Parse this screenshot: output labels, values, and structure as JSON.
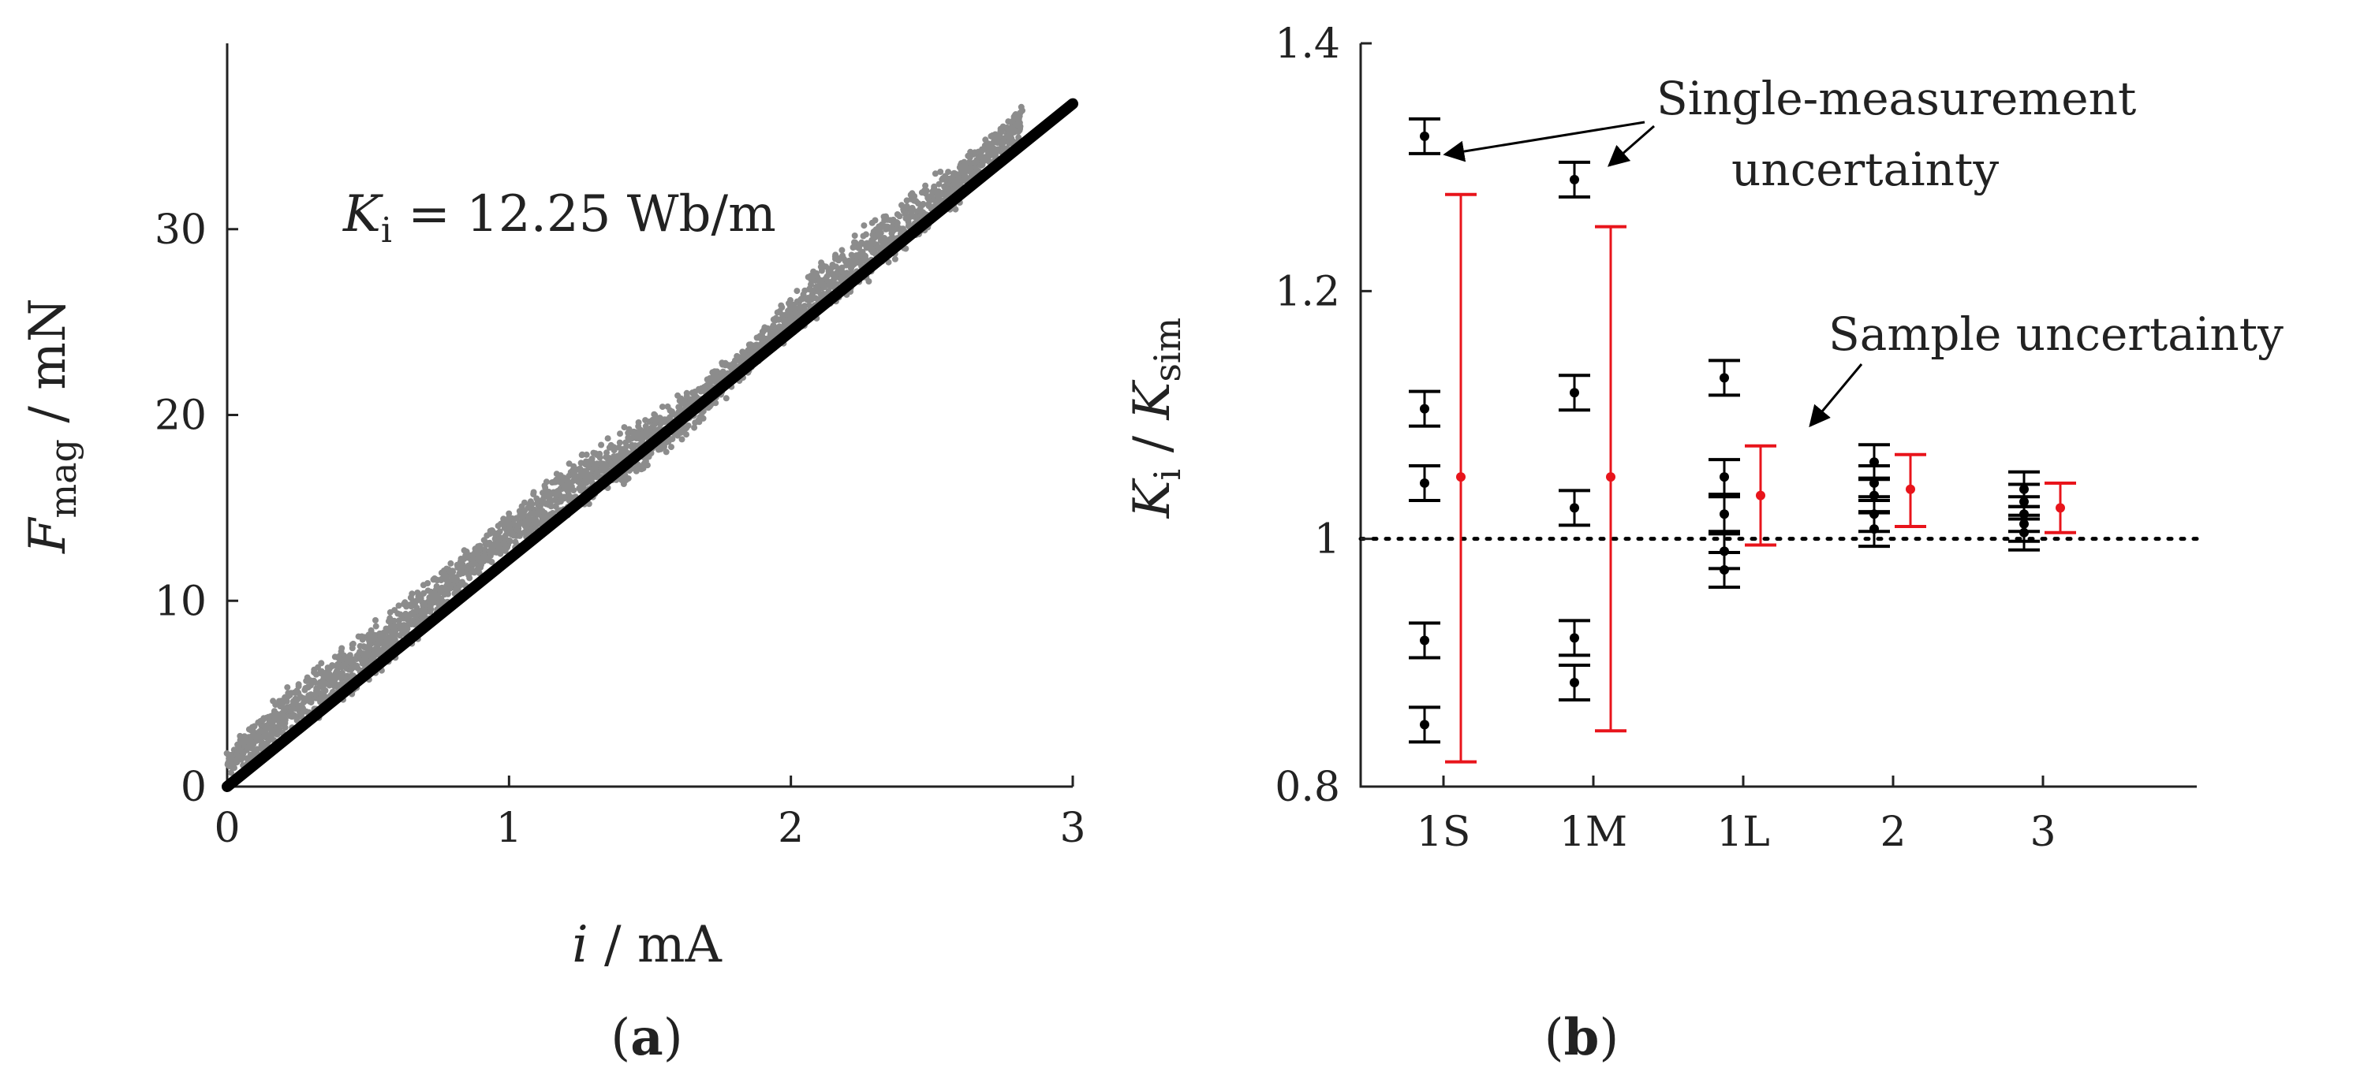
{
  "chart_data": [
    {
      "id": "a",
      "type": "scatter",
      "panel_label_open": "(",
      "panel_label_letter": "a",
      "panel_label_close": ")",
      "xlabel_var": "i",
      "xlabel_unit": " / mA",
      "ylabel_var": "F",
      "ylabel_sub": "mag",
      "ylabel_unit": " / mN",
      "xlim": [
        0,
        3
      ],
      "ylim": [
        0,
        40
      ],
      "xticks": [
        "0",
        "1",
        "2",
        "3"
      ],
      "yticks": [
        "0",
        "10",
        "20",
        "30"
      ],
      "annotation_var": "K",
      "annotation_sub": "i",
      "annotation_text": " = 12.25 Wb/m",
      "fit": {
        "slope": 12.25,
        "x": [
          0,
          3
        ],
        "color": "#000000"
      },
      "scatter_color": "#8c8c8c",
      "scatter_range": [
        0,
        2.82
      ]
    },
    {
      "id": "b",
      "type": "errorbar",
      "panel_label_open": "(",
      "panel_label_letter": "b",
      "panel_label_close": ")",
      "ylabel_var": "K",
      "ylabel_sub": "i",
      "ylabel_mid": " / ",
      "ylabel_var2": "K",
      "ylabel_sub2": "sim",
      "ylim": [
        0.8,
        1.4
      ],
      "yticks": [
        "0.8",
        "1",
        "1.2",
        "1.4"
      ],
      "categories": [
        "1S",
        "1M",
        "1L",
        "2",
        "3"
      ],
      "reference_line": 1.0,
      "single_color": "#000000",
      "sample_color": "#e8141b",
      "single_measurements": [
        {
          "category": "1S",
          "points": [
            {
              "value": 1.325,
              "err": 0.014
            },
            {
              "value": 1.105,
              "err": 0.014
            },
            {
              "value": 1.045,
              "err": 0.014
            },
            {
              "value": 0.918,
              "err": 0.014
            },
            {
              "value": 0.85,
              "err": 0.014
            }
          ]
        },
        {
          "category": "1M",
          "points": [
            {
              "value": 1.29,
              "err": 0.014
            },
            {
              "value": 1.118,
              "err": 0.014
            },
            {
              "value": 1.025,
              "err": 0.014
            },
            {
              "value": 0.92,
              "err": 0.014
            },
            {
              "value": 0.884,
              "err": 0.014
            }
          ]
        },
        {
          "category": "1L",
          "points": [
            {
              "value": 1.13,
              "err": 0.014
            },
            {
              "value": 1.05,
              "err": 0.014
            },
            {
              "value": 1.02,
              "err": 0.014
            },
            {
              "value": 0.99,
              "err": 0.014
            },
            {
              "value": 0.975,
              "err": 0.014
            }
          ]
        },
        {
          "category": "2",
          "points": [
            {
              "value": 1.062,
              "err": 0.014
            },
            {
              "value": 1.045,
              "err": 0.014
            },
            {
              "value": 1.035,
              "err": 0.014
            },
            {
              "value": 1.02,
              "err": 0.014
            },
            {
              "value": 1.008,
              "err": 0.014
            }
          ]
        },
        {
          "category": "3",
          "points": [
            {
              "value": 1.04,
              "err": 0.014
            },
            {
              "value": 1.03,
              "err": 0.014
            },
            {
              "value": 1.02,
              "err": 0.014
            },
            {
              "value": 1.012,
              "err": 0.014
            },
            {
              "value": 1.005,
              "err": 0.014
            }
          ]
        }
      ],
      "sample_uncertainty": [
        {
          "category": "1S",
          "mean": 1.05,
          "low": 0.82,
          "high": 1.278
        },
        {
          "category": "1M",
          "mean": 1.05,
          "low": 0.845,
          "high": 1.252
        },
        {
          "category": "1L",
          "mean": 1.035,
          "low": 0.995,
          "high": 1.075
        },
        {
          "category": "2",
          "mean": 1.04,
          "low": 1.01,
          "high": 1.068
        },
        {
          "category": "3",
          "mean": 1.025,
          "low": 1.005,
          "high": 1.045
        }
      ],
      "annotations": {
        "single_line1": "Single-measurement",
        "single_line2": "uncertainty",
        "sample": "Sample uncertainty"
      }
    }
  ]
}
